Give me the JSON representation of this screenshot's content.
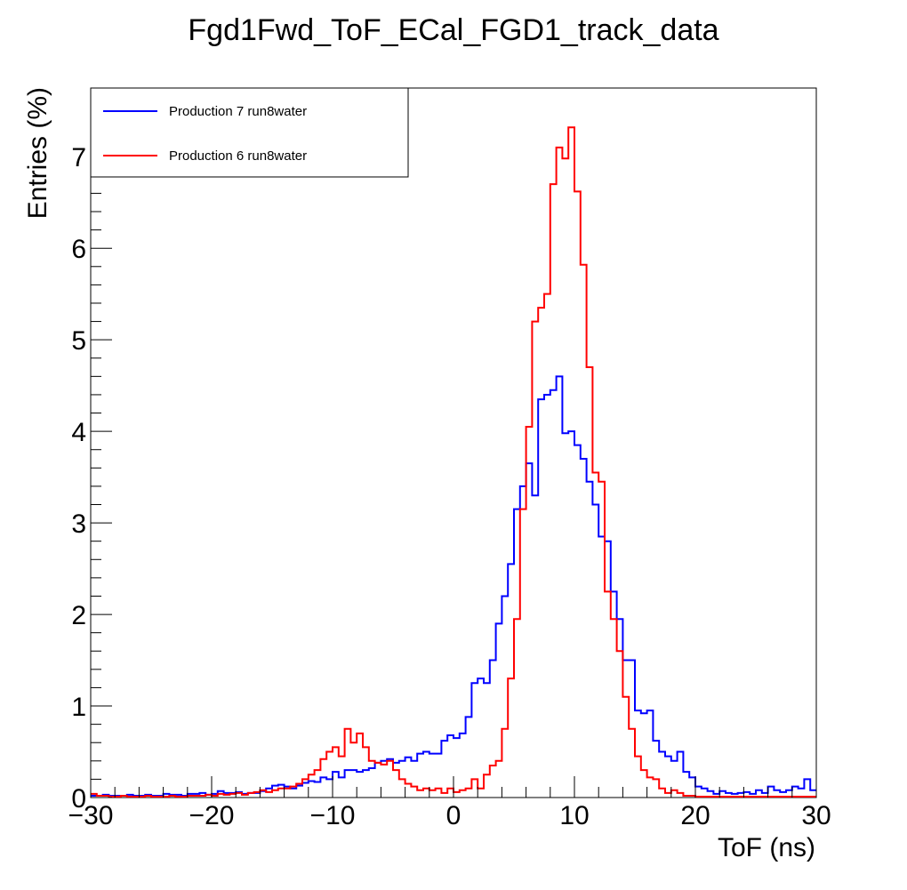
{
  "chart_data": {
    "type": "histogram",
    "title": "Fgd1Fwd_ToF_ECal_FGD1_track_data",
    "xlabel": "ToF (ns)",
    "ylabel": "Entries (%)",
    "xlim": [
      -30,
      30
    ],
    "ylim": [
      0,
      7.75
    ],
    "bin_width": 0.5,
    "x_ticks": [
      -30,
      -20,
      -10,
      0,
      10,
      20,
      30
    ],
    "x_tick_labels": [
      "−30",
      "−20",
      "−10",
      "0",
      "10",
      "20",
      "30"
    ],
    "y_ticks": [
      0,
      1,
      2,
      3,
      4,
      5,
      6,
      7
    ],
    "y_tick_labels": [
      "0",
      "1",
      "2",
      "3",
      "4",
      "5",
      "6",
      "7"
    ],
    "grid": false,
    "legend_position": "top-left",
    "series": [
      {
        "name": "Production 7 run8water",
        "color": "#0000ff",
        "x": [
          -30,
          -29.5,
          -29,
          -28.5,
          -28,
          -27.5,
          -27,
          -26.5,
          -26,
          -25.5,
          -25,
          -24.5,
          -24,
          -23.5,
          -23,
          -22.5,
          -22,
          -21.5,
          -21,
          -20.5,
          -20,
          -19.5,
          -19,
          -18.5,
          -18,
          -17.5,
          -17,
          -16.5,
          -16,
          -15.5,
          -15,
          -14.5,
          -14,
          -13.5,
          -13,
          -12.5,
          -12,
          -11.5,
          -11,
          -10.5,
          -10,
          -9.5,
          -9,
          -8.5,
          -8,
          -7.5,
          -7,
          -6.5,
          -6,
          -5.5,
          -5,
          -4.5,
          -4,
          -3.5,
          -3,
          -2.5,
          -2,
          -1.5,
          -1,
          -0.5,
          0,
          0.5,
          1,
          1.5,
          2,
          2.5,
          3,
          3.5,
          4,
          4.5,
          5,
          5.5,
          6,
          6.5,
          7,
          7.5,
          8,
          8.5,
          9,
          9.5,
          10,
          10.5,
          11,
          11.5,
          12,
          12.5,
          13,
          13.5,
          14,
          14.5,
          15,
          15.5,
          16,
          16.5,
          17,
          17.5,
          18,
          18.5,
          19,
          19.5,
          20,
          20.5,
          21,
          21.5,
          22,
          22.5,
          23,
          23.5,
          24,
          24.5,
          25,
          25.5,
          26,
          26.5,
          27,
          27.5,
          28,
          28.5,
          29,
          29.5
        ],
        "values": [
          0.02,
          0.02,
          0.03,
          0.02,
          0.02,
          0.02,
          0.03,
          0.02,
          0.02,
          0.03,
          0.02,
          0.02,
          0.04,
          0.03,
          0.03,
          0.02,
          0.04,
          0.04,
          0.05,
          0.03,
          0.04,
          0.07,
          0.05,
          0.05,
          0.06,
          0.04,
          0.05,
          0.05,
          0.07,
          0.1,
          0.13,
          0.14,
          0.12,
          0.1,
          0.13,
          0.16,
          0.18,
          0.17,
          0.22,
          0.2,
          0.28,
          0.22,
          0.3,
          0.3,
          0.28,
          0.3,
          0.32,
          0.38,
          0.4,
          0.42,
          0.38,
          0.4,
          0.44,
          0.4,
          0.48,
          0.5,
          0.48,
          0.48,
          0.62,
          0.68,
          0.65,
          0.7,
          0.88,
          1.25,
          1.3,
          1.25,
          1.5,
          1.9,
          2.2,
          2.55,
          3.15,
          3.4,
          3.65,
          3.3,
          4.35,
          4.4,
          4.45,
          4.6,
          3.98,
          4.0,
          3.85,
          3.7,
          3.45,
          3.2,
          2.85,
          2.8,
          2.25,
          1.95,
          1.5,
          1.5,
          0.95,
          0.92,
          0.95,
          0.62,
          0.5,
          0.45,
          0.4,
          0.5,
          0.28,
          0.22,
          0.12,
          0.1,
          0.07,
          0.04,
          0.07,
          0.05,
          0.04,
          0.05,
          0.06,
          0.04,
          0.08,
          0.05,
          0.12,
          0.08,
          0.06,
          0.08,
          0.12,
          0.1,
          0.2,
          0.08
        ]
      },
      {
        "name": "Production 6 run8water",
        "color": "#ff0000",
        "x": [
          -30,
          -29.5,
          -29,
          -28.5,
          -28,
          -27.5,
          -27,
          -26.5,
          -26,
          -25.5,
          -25,
          -24.5,
          -24,
          -23.5,
          -23,
          -22.5,
          -22,
          -21.5,
          -21,
          -20.5,
          -20,
          -19.5,
          -19,
          -18.5,
          -18,
          -17.5,
          -17,
          -16.5,
          -16,
          -15.5,
          -15,
          -14.5,
          -14,
          -13.5,
          -13,
          -12.5,
          -12,
          -11.5,
          -11,
          -10.5,
          -10,
          -9.5,
          -9,
          -8.5,
          -8,
          -7.5,
          -7,
          -6.5,
          -6,
          -5.5,
          -5,
          -4.5,
          -4,
          -3.5,
          -3,
          -2.5,
          -2,
          -1.5,
          -1,
          -0.5,
          0,
          0.5,
          1,
          1.5,
          2,
          2.5,
          3,
          3.5,
          4,
          4.5,
          5,
          5.5,
          6,
          6.5,
          7,
          7.5,
          8,
          8.5,
          9,
          9.5,
          10,
          10.5,
          11,
          11.5,
          12,
          12.5,
          13,
          13.5,
          14,
          14.5,
          15,
          15.5,
          16,
          16.5,
          17,
          17.5,
          18,
          18.5,
          19,
          19.5,
          20,
          20.5,
          21,
          21.5,
          22,
          22.5,
          23,
          23.5,
          24,
          24.5,
          25,
          25.5,
          26,
          26.5,
          27,
          27.5,
          28,
          28.5,
          29,
          29.5
        ],
        "values": [
          0.04,
          0.02,
          0.02,
          0.01,
          0.01,
          0.02,
          0.01,
          0.01,
          0.01,
          0.02,
          0.01,
          0.01,
          0.01,
          0.02,
          0.01,
          0.01,
          0.02,
          0.02,
          0.02,
          0.03,
          0.02,
          0.04,
          0.03,
          0.04,
          0.05,
          0.03,
          0.05,
          0.06,
          0.08,
          0.06,
          0.08,
          0.1,
          0.1,
          0.12,
          0.15,
          0.2,
          0.25,
          0.3,
          0.42,
          0.5,
          0.55,
          0.45,
          0.75,
          0.6,
          0.7,
          0.55,
          0.4,
          0.38,
          0.36,
          0.4,
          0.3,
          0.2,
          0.15,
          0.12,
          0.08,
          0.1,
          0.08,
          0.1,
          0.05,
          0.1,
          0.06,
          0.08,
          0.1,
          0.2,
          0.1,
          0.25,
          0.35,
          0.4,
          0.75,
          1.3,
          1.95,
          3.15,
          4.05,
          5.2,
          5.35,
          5.5,
          6.7,
          7.1,
          6.98,
          7.32,
          6.62,
          5.82,
          4.7,
          3.55,
          3.45,
          2.25,
          1.95,
          1.6,
          1.1,
          0.75,
          0.45,
          0.3,
          0.22,
          0.2,
          0.1,
          0.05,
          0.08,
          0.05,
          0.02,
          0.02,
          0.01,
          0.01,
          0.01,
          0.01,
          0.01,
          0.01,
          0.01,
          0.01,
          0.01,
          0.01,
          0.01,
          0.01,
          0.01,
          0.01,
          0.01,
          0.01,
          0.01,
          0.01,
          0.01,
          0.01
        ]
      }
    ]
  }
}
